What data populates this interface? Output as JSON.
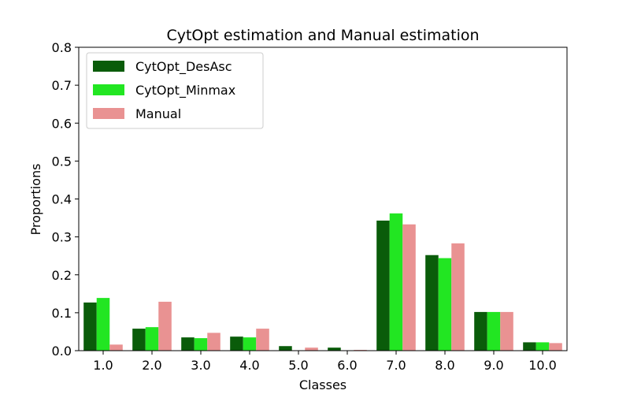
{
  "chart_data": {
    "type": "bar",
    "title": "CytOpt estimation and Manual estimation",
    "xlabel": "Classes",
    "ylabel": "Proportions",
    "ylim": [
      0,
      0.8
    ],
    "yticks": [
      "0.0",
      "0.1",
      "0.2",
      "0.3",
      "0.4",
      "0.5",
      "0.6",
      "0.7",
      "0.8"
    ],
    "categories": [
      "1.0",
      "2.0",
      "3.0",
      "4.0",
      "5.0",
      "6.0",
      "7.0",
      "8.0",
      "9.0",
      "10.0"
    ],
    "legend_position": "top-left",
    "grid": false,
    "series": [
      {
        "name": "CytOpt_DesAsc",
        "color": "#0a5c0a",
        "values": [
          0.127,
          0.058,
          0.035,
          0.037,
          0.012,
          0.008,
          0.343,
          0.252,
          0.102,
          0.022
        ]
      },
      {
        "name": "CytOpt_Minmax",
        "color": "#22e622",
        "values": [
          0.139,
          0.062,
          0.033,
          0.035,
          0.001,
          0.001,
          0.362,
          0.244,
          0.102,
          0.022
        ]
      },
      {
        "name": "Manual",
        "color": "#e99292",
        "values": [
          0.016,
          0.129,
          0.047,
          0.058,
          0.008,
          0.002,
          0.333,
          0.283,
          0.102,
          0.02
        ]
      }
    ]
  }
}
